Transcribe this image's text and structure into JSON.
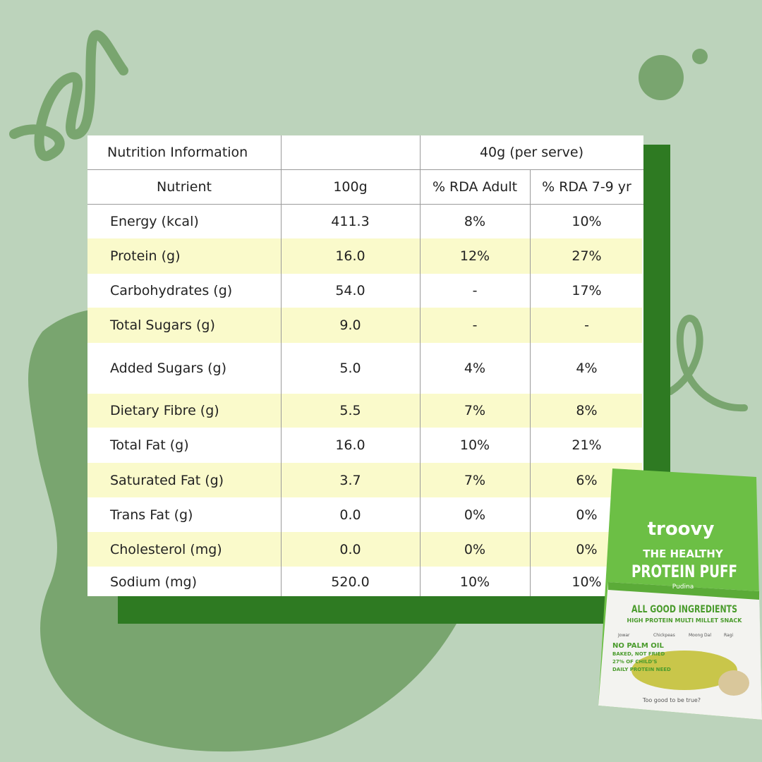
{
  "table": {
    "title": "Nutrition Information",
    "serving": "40g (per serve)",
    "columns": [
      "Nutrient",
      "100g",
      "% RDA Adult",
      "% RDA 7-9 yr"
    ],
    "rows": [
      [
        "Energy (kcal)",
        "411.3",
        "8%",
        "10%"
      ],
      [
        "Protein (g)",
        "16.0",
        "12%",
        "27%"
      ],
      [
        "Carbohydrates (g)",
        "54.0",
        "-",
        "17%"
      ],
      [
        "Total Sugars (g)",
        "9.0",
        "-",
        "-"
      ],
      [
        "Added Sugars (g)",
        "5.0",
        "4%",
        "4%"
      ],
      [
        "Dietary Fibre (g)",
        "5.5",
        "7%",
        "8%"
      ],
      [
        "Total Fat (g)",
        "16.0",
        "10%",
        "21%"
      ],
      [
        "Saturated Fat (g)",
        "3.7",
        "7%",
        "6%"
      ],
      [
        "Trans Fat (g)",
        "0.0",
        "0%",
        "0%"
      ],
      [
        "Cholesterol (mg)",
        "0.0",
        "0%",
        "0%"
      ],
      [
        "Sodium (mg)",
        "520.0",
        "10%",
        "10%"
      ]
    ]
  },
  "package": {
    "brand": "troovy",
    "tagline": "THE HEALTHY",
    "product": "PROTEIN PUFF",
    "flavor": "Pudina",
    "banner": "ALL GOOD INGREDIENTS",
    "subtitle": "HIGH PROTEIN MULTI MILLET SNACK",
    "ingredients": [
      "Jowar",
      "Chickpeas",
      "Moong Dal",
      "Ragi"
    ],
    "claims": [
      "NO PALM OIL",
      "BAKED, NOT FRIED",
      "27% OF CHILD'S",
      "DAILY PROTEIN NEED"
    ],
    "footer": "Too good to be true?"
  }
}
